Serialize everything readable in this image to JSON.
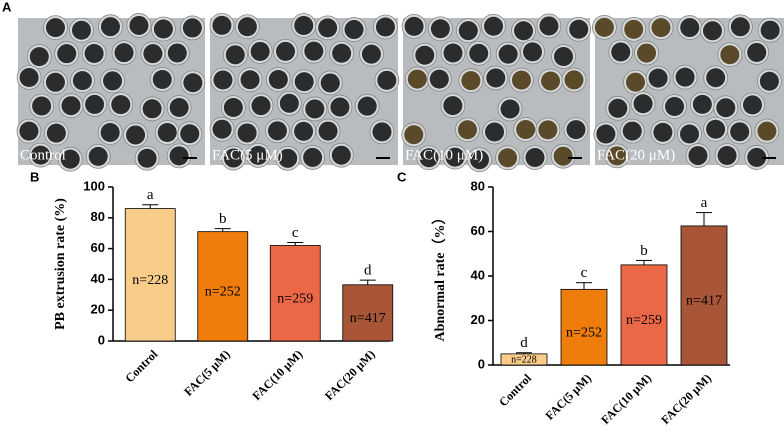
{
  "panel_a": {
    "label": "A",
    "images": [
      "Control",
      "FAC(5 μM)",
      "FAC(10 μM)",
      "FAC(20 μM)"
    ]
  },
  "chart_data": [
    {
      "type": "bar",
      "panel_label": "B",
      "ylabel": "PB extrusion rate (%)",
      "categories": [
        "Control",
        "FAC(5 μM)",
        "FAC(10 μM)",
        "FAC(20 μM)"
      ],
      "values": [
        86,
        71,
        62,
        36.5
      ],
      "errors": [
        2.5,
        2,
        2,
        3
      ],
      "colors": [
        "#f9cc8a",
        "#ee7d0c",
        "#ea6846",
        "#a85637"
      ],
      "letters": [
        "a",
        "b",
        "c",
        "d"
      ],
      "n_labels": [
        "n=228",
        "n=252",
        "n=259",
        "n=417"
      ],
      "ylim": [
        0,
        100
      ],
      "yticks": [
        0,
        20,
        40,
        60,
        80,
        100
      ]
    },
    {
      "type": "bar",
      "panel_label": "C",
      "ylabel": "Abnormal rate（%）",
      "categories": [
        "Control",
        "FAC(5 μM)",
        "FAC(10 μM)",
        "FAC(20 μM)"
      ],
      "values": [
        5,
        34,
        45,
        62.5
      ],
      "errors": [
        0.5,
        3,
        2,
        6
      ],
      "colors": [
        "#f9cc8a",
        "#ee7d0c",
        "#ea6846",
        "#a85637"
      ],
      "letters": [
        "d",
        "c",
        "b",
        "a"
      ],
      "n_labels": [
        "n=228",
        "n=252",
        "n=259",
        "n=417"
      ],
      "ylim": [
        0,
        80
      ],
      "yticks": [
        0,
        20,
        40,
        60,
        80
      ]
    }
  ]
}
